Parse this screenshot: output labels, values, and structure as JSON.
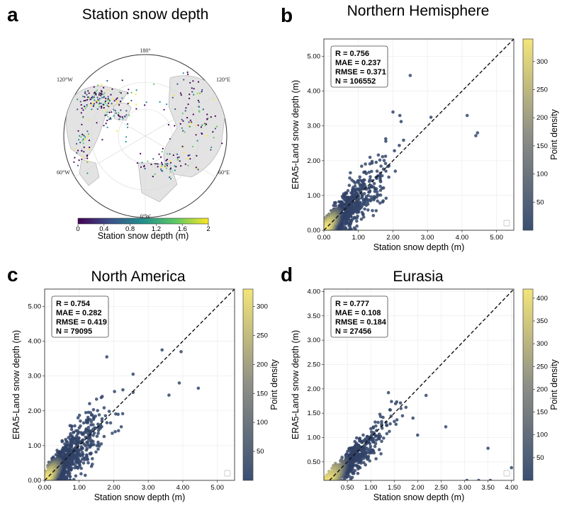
{
  "panel_a": {
    "label": "a",
    "title": "Station snow depth",
    "colorbar_label": "Station snow depth (m)",
    "colorbar_ticks": [
      "0",
      "0.4",
      "0.8",
      "1.2",
      "1.6",
      "2"
    ],
    "map_labels": {
      "top": "180°",
      "top_left": "120°W",
      "top_right": "120°E",
      "left": "60°W",
      "right": "60°E",
      "bottom": "0°W"
    }
  },
  "colors": {
    "viridis": [
      "#440154",
      "#3b528b",
      "#21908d",
      "#5dc963",
      "#fde725"
    ],
    "density_low": "#3a4f73",
    "density_high": "#f3e57a"
  },
  "chart_data": [
    {
      "panel": "b",
      "title": "Northern Hemisphere",
      "type": "scatter",
      "xlabel": "Station snow depth (m)",
      "ylabel": "ERA5-Land snow depth (m)",
      "colorbar_label": "Point density",
      "xlim": [
        0,
        5.5
      ],
      "ylim": [
        0,
        5.5
      ],
      "xticks": [
        "0.00",
        "1.00",
        "2.00",
        "3.00",
        "4.00",
        "5.00"
      ],
      "yticks": [
        "0.00",
        "1.00",
        "2.00",
        "3.00",
        "4.00",
        "5.00"
      ],
      "cbar_ticks": [
        "50",
        "100",
        "150",
        "200",
        "250",
        "300"
      ],
      "cbar_max": 340,
      "stats": [
        "R = 0.756",
        "MAE = 0.237",
        "RMSE = 0.371",
        "N = 106552"
      ],
      "outliers": [
        [
          2.5,
          4.45
        ],
        [
          4.45,
          2.8
        ],
        [
          4.4,
          2.72
        ],
        [
          4.15,
          3.3
        ],
        [
          3.1,
          3.25
        ],
        [
          2.0,
          3.4
        ],
        [
          2.2,
          3.3
        ]
      ],
      "spread": 0.55,
      "grid": true
    },
    {
      "panel": "c",
      "title": "North America",
      "type": "scatter",
      "xlabel": "Station snow depth (m)",
      "ylabel": "ERA5-Land snow depth (m)",
      "colorbar_label": "Point density",
      "xlim": [
        0,
        5.5
      ],
      "ylim": [
        0,
        5.5
      ],
      "xticks": [
        "0.00",
        "1.00",
        "2.00",
        "3.00",
        "4.00",
        "5.00"
      ],
      "yticks": [
        "0.00",
        "1.00",
        "2.00",
        "3.00",
        "4.00",
        "5.00"
      ],
      "cbar_ticks": [
        "50",
        "100",
        "150",
        "200",
        "250",
        "300"
      ],
      "cbar_max": 330,
      "stats": [
        "R = 0.754",
        "MAE = 0.282",
        "RMSE = 0.419",
        "N = 79095"
      ],
      "outliers": [
        [
          4.45,
          2.65
        ],
        [
          3.9,
          2.8
        ],
        [
          3.6,
          2.45
        ],
        [
          3.4,
          3.75
        ],
        [
          3.95,
          3.7
        ],
        [
          1.8,
          3.55
        ]
      ],
      "spread": 0.6,
      "grid": true
    },
    {
      "panel": "d",
      "title": "Eurasia",
      "type": "scatter",
      "xlabel": "Station snow depth (m)",
      "ylabel": "ERA5-Land snow depth (m)",
      "colorbar_label": "Point density",
      "xlim": [
        0,
        4.05
      ],
      "ylim": [
        0.12,
        4.05
      ],
      "xticks": [
        "0.50",
        "1.00",
        "1.50",
        "2.00",
        "2.50",
        "3.00",
        "3.50",
        "4.00"
      ],
      "yticks": [
        "0.50",
        "1.00",
        "1.50",
        "2.00",
        "2.50",
        "3.00",
        "3.50",
        "4.00"
      ],
      "cbar_ticks": [
        "50",
        "100",
        "150",
        "200",
        "250",
        "300",
        "350",
        "400"
      ],
      "cbar_max": 420,
      "stats": [
        "R = 0.777",
        "MAE = 0.108",
        "RMSE = 0.184",
        "N = 27456"
      ],
      "outliers": [
        [
          3.5,
          0.78
        ],
        [
          4.0,
          0.38
        ],
        [
          3.05,
          0.12
        ],
        [
          3.3,
          0.12
        ],
        [
          3.55,
          0.12
        ],
        [
          2.6,
          1.22
        ],
        [
          1.75,
          1.62
        ],
        [
          1.9,
          1.4
        ],
        [
          2.0,
          1.05
        ]
      ],
      "spread": 0.3,
      "grid": true
    }
  ]
}
